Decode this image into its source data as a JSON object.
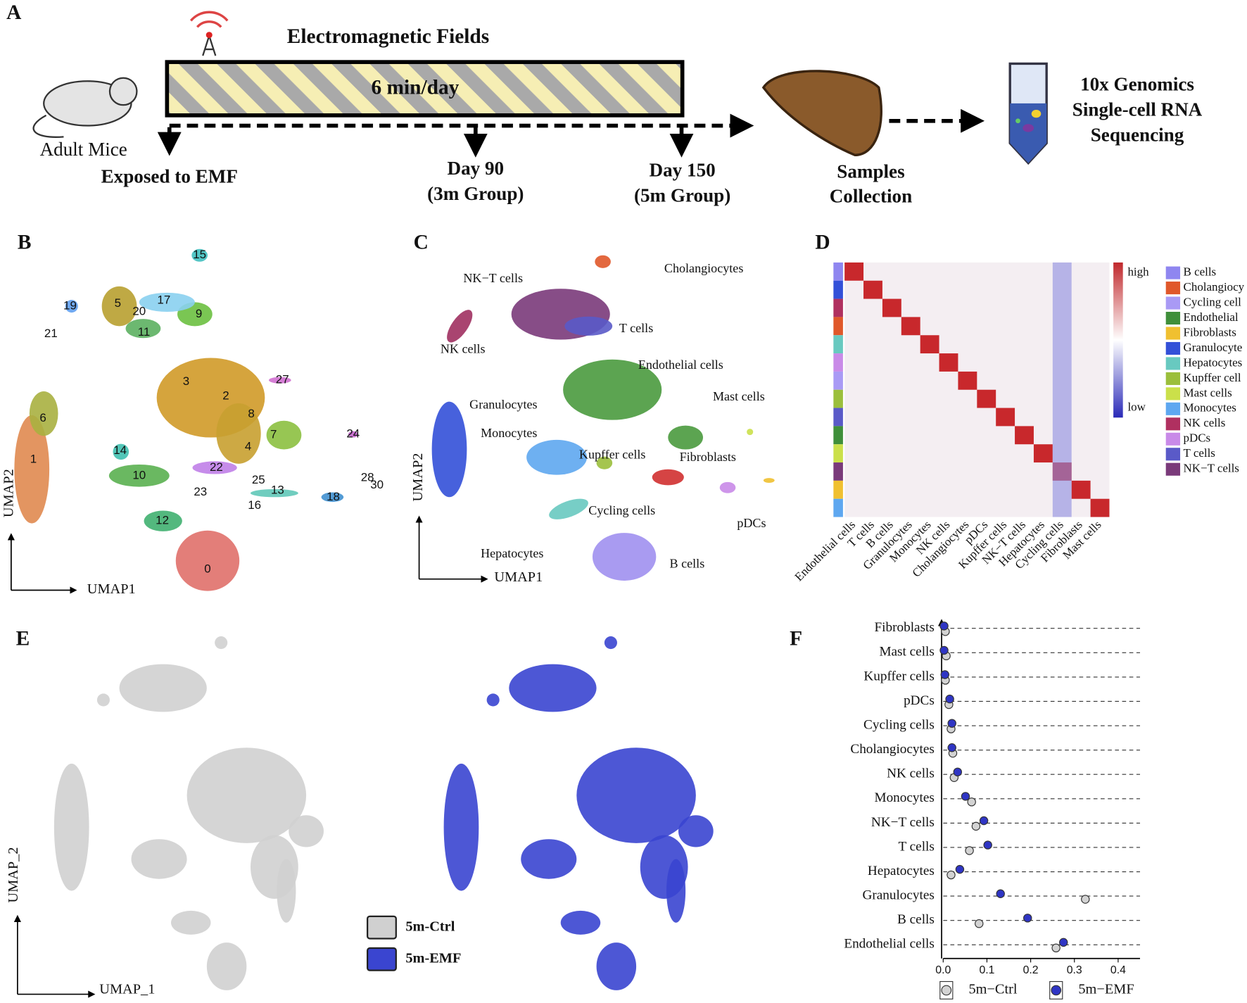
{
  "figure": {
    "panel_a": {
      "letter": "A",
      "title": "Electromagnetic Fields",
      "bar_text": "6 min/day",
      "mice": "Adult Mice",
      "start": "Exposed to EMF",
      "day90": [
        "Day 90",
        "(3m Group)"
      ],
      "day150": [
        "Day 150",
        "(5m Group)"
      ],
      "collection": [
        "Samples",
        "Collection"
      ],
      "sequencing": [
        "10x Genomics",
        "Single-cell RNA",
        "Sequencing"
      ]
    },
    "panel_b": {
      "letter": "B",
      "xlabel": "UMAP1",
      "ylabel": "UMAP2",
      "clusters": [
        "0",
        "1",
        "2",
        "3",
        "4",
        "5",
        "6",
        "7",
        "8",
        "9",
        "10",
        "11",
        "12",
        "13",
        "14",
        "15",
        "16",
        "17",
        "18",
        "19",
        "20",
        "21",
        "22",
        "23",
        "24",
        "25",
        "27",
        "28",
        "30"
      ]
    },
    "panel_c": {
      "letter": "C",
      "xlabel": "UMAP1",
      "ylabel": "UMAP2",
      "labels": [
        "NK−T cells",
        "Cholangiocytes",
        "T cells",
        "NK cells",
        "Endothelial cells",
        "Mast cells",
        "Granulocytes",
        "Monocytes",
        "Kupffer cells",
        "Fibroblasts",
        "Cycling cells",
        "pDCs",
        "Hepatocytes",
        "B cells"
      ]
    },
    "panel_d": {
      "letter": "D",
      "high": "high",
      "low": "low",
      "columns": [
        "Endothelial cells",
        "T cells",
        "B cells",
        "Granulocytes",
        "Monocytes",
        "NK cells",
        "Cholangiocytes",
        "pDCs",
        "Kupffer cells",
        "NK−T cells",
        "Hepatocytes",
        "Cycling cells",
        "Fibroblasts",
        "Mast cells"
      ],
      "legend": [
        "B cells",
        "Cholangiocy",
        "Cycling cell",
        "Endothelial",
        "Fibroblasts",
        "Granulocyte",
        "Hepatocytes",
        "Kupffer cell",
        "Mast cells",
        "Monocytes",
        "NK cells",
        "pDCs",
        "T cells",
        "NK−T cells"
      ],
      "legend_colors": [
        "#8f86f0",
        "#e0582a",
        "#a99af5",
        "#3f8f3a",
        "#f0c030",
        "#3350d8",
        "#68c9c0",
        "#9bbf3c",
        "#cbe04a",
        "#5ea7f0",
        "#b03060",
        "#c98ae8",
        "#5a5ac8",
        "#7a3a7a"
      ]
    },
    "panel_e": {
      "letter": "E",
      "xlabel": "UMAP_1",
      "ylabel": "UMAP_2",
      "legend": [
        "5m-Ctrl",
        "5m-EMF"
      ],
      "colors": [
        "#d0d0d0",
        "#3a45d0"
      ]
    },
    "panel_f": {
      "letter": "F"
    }
  },
  "chart_data": {
    "type": "dot",
    "categories": [
      "Fibroblasts",
      "Mast cells",
      "Kupffer cells",
      "pDCs",
      "Cycling cells",
      "Cholangiocytes",
      "NK cells",
      "Monocytes",
      "NK−T cells",
      "T cells",
      "Hepatocytes",
      "Granulocytes",
      "B cells",
      "Endothelial cells"
    ],
    "series": [
      {
        "name": "5m−Ctrl",
        "color": "#d3d3d3",
        "values": [
          0.005,
          0.007,
          0.005,
          0.013,
          0.018,
          0.022,
          0.025,
          0.065,
          0.075,
          0.06,
          0.018,
          0.325,
          0.082,
          0.258
        ]
      },
      {
        "name": "5m−EMF",
        "color": "#2f35c4",
        "values": [
          0.002,
          0.002,
          0.004,
          0.015,
          0.02,
          0.02,
          0.033,
          0.051,
          0.093,
          0.102,
          0.038,
          0.131,
          0.193,
          0.275
        ]
      }
    ],
    "xlim": [
      0,
      0.45
    ],
    "xticks": [
      {
        "value": 0,
        "label": "0.0"
      },
      0.1,
      0.2,
      0.3,
      0.4
    ],
    "grid": true
  }
}
